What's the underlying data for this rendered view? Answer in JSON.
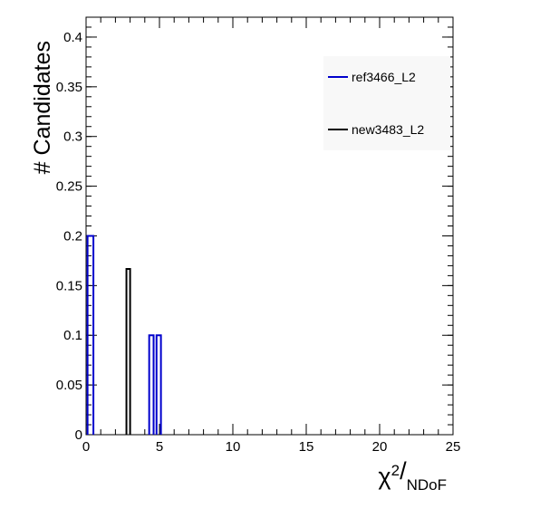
{
  "chart_data": {
    "type": "histogram",
    "title": "",
    "ylabel": "# Candidates",
    "xlabel": {
      "base": "χ",
      "sup": "2",
      "sep": "/",
      "sub": "NDoF"
    },
    "xlim": [
      0,
      25
    ],
    "ylim": [
      0,
      0.42
    ],
    "x_ticks": [
      0,
      5,
      10,
      15,
      20,
      25
    ],
    "x_tick_labels": [
      "0",
      "5",
      "10",
      "15",
      "20",
      "25"
    ],
    "y_ticks": [
      0,
      0.05,
      0.1,
      0.15,
      0.2,
      0.25,
      0.3,
      0.35,
      0.4
    ],
    "y_tick_labels": [
      "0",
      "0.05",
      "0.1",
      "0.15",
      "0.2",
      "0.25",
      "0.3",
      "0.35",
      "0.4"
    ],
    "x_minor_step": 1,
    "y_minor_step": 0.01,
    "grid": false,
    "legend_position": "top-right",
    "series": [
      {
        "name": "ref3466_L2",
        "color": "#0000cc",
        "bins": [
          {
            "x0": 0.1,
            "x1": 0.5,
            "value": 0.2
          },
          {
            "x0": 4.3,
            "x1": 4.6,
            "value": 0.1
          },
          {
            "x0": 4.8,
            "x1": 5.1,
            "value": 0.1
          }
        ]
      },
      {
        "name": "new3483_L2",
        "color": "#000000",
        "bins": [
          {
            "x0": 2.75,
            "x1": 3.0,
            "value": 0.1667
          }
        ]
      }
    ]
  }
}
